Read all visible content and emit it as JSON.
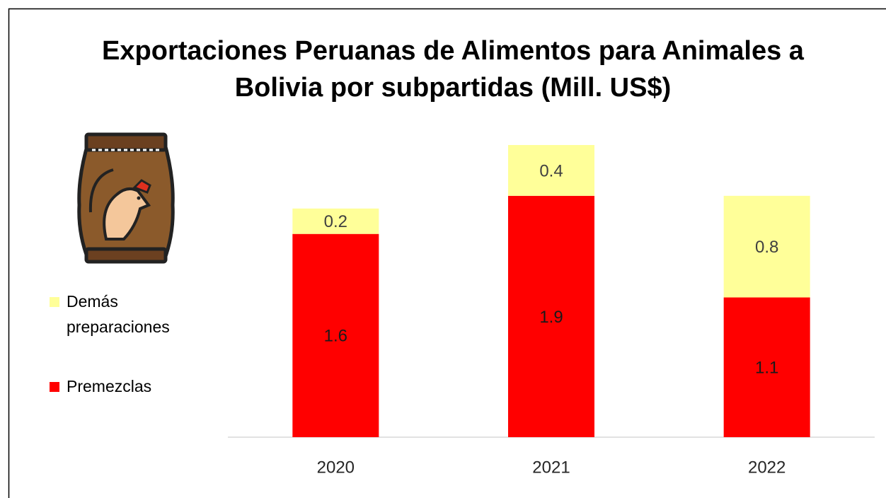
{
  "chart_data": {
    "type": "stacked-bar",
    "title": "Exportaciones Peruanas de Alimentos para Animales a Bolivia por subpartidas (Mill. US$)",
    "categories": [
      "2020",
      "2021",
      "2022"
    ],
    "series": [
      {
        "name": "Premezclas",
        "color": "#ff0000",
        "values": [
          1.6,
          1.9,
          1.1
        ]
      },
      {
        "name": "Demás preparaciones",
        "color": "#ffff99",
        "values": [
          0.2,
          0.4,
          0.8
        ]
      }
    ],
    "legend": "left"
  }
}
